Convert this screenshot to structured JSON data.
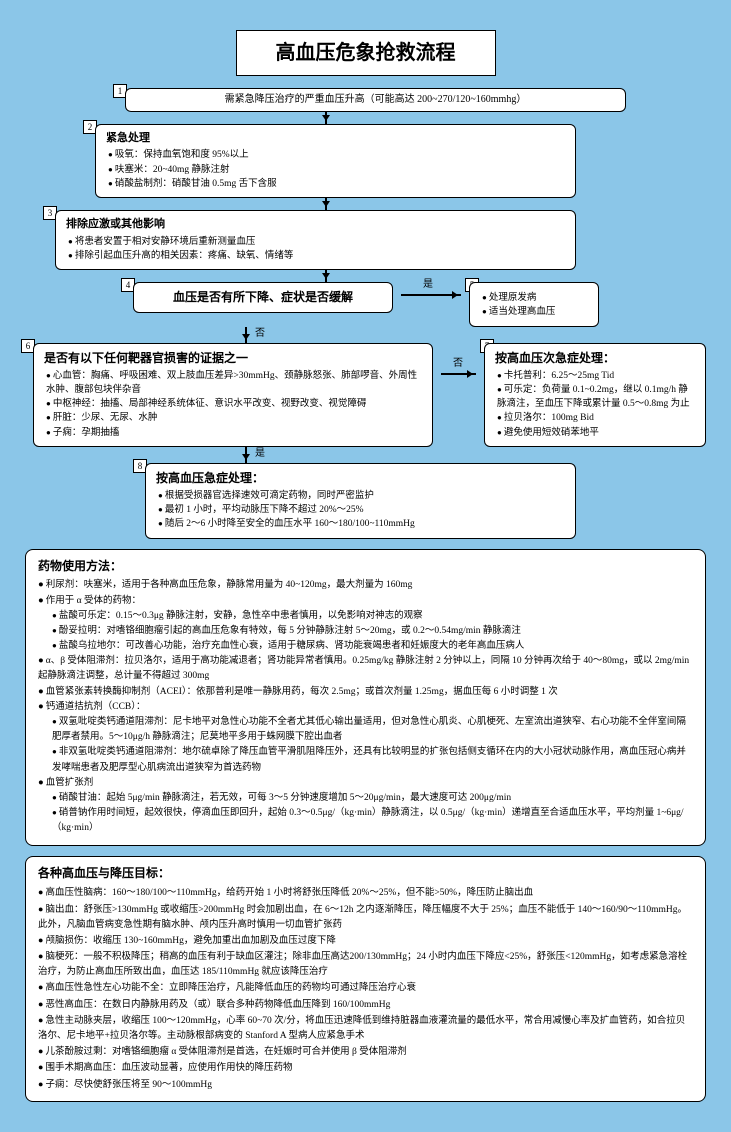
{
  "colors": {
    "bg": "#8bc6e8",
    "box": "#ffffff",
    "border": "#000000"
  },
  "title": "高血压危象抢救流程",
  "n1": {
    "num": "1",
    "text": "需紧急降压治疗的严重血压升高（可能高达 200~270/120~160mmhg）"
  },
  "n2": {
    "num": "2",
    "title": "紧急处理",
    "items": [
      "吸氧：保持血氧饱和度 95%以上",
      "呋塞米：20~40mg 静脉注射",
      "硝酸盐制剂：硝酸甘油 0.5mg 舌下含服"
    ]
  },
  "n3": {
    "num": "3",
    "title": "排除应激或其他影响",
    "items": [
      "将患者安置于相对安静环境后重新测量血压",
      "排除引起血压升高的相关因素：疼痛、缺氧、情绪等"
    ]
  },
  "n4": {
    "num": "4",
    "text": "血压是否有所下降、症状是否缓解"
  },
  "n5": {
    "num": "5",
    "items": [
      "处理原发病",
      "适当处理高血压"
    ]
  },
  "n6": {
    "num": "6",
    "title": "是否有以下任何靶器官损害的证据之一",
    "items": [
      "心血管：胸痛、呼吸困难、双上肢血压差异>30mmHg、颈静脉怒张、肺部啰音、外周性水肿、腹部包块伴杂音",
      "中枢神经：抽搐、局部神经系统体征、意识水平改变、视野改变、视觉障碍",
      "肝脏：少尿、无尿、水肿",
      "子痫：孕期抽搐"
    ]
  },
  "n7": {
    "num": "7",
    "title": "按高血压次急症处理：",
    "items": [
      "卡托普利：6.25～25mg Tid",
      "可乐定：负荷量 0.1~0.2mg，继以 0.1mg/h 静脉滴注，至血压下降或累计量 0.5～0.8mg 为止",
      "拉贝洛尔：100mg Bid",
      "避免使用短效硝苯地平"
    ]
  },
  "n8": {
    "num": "8",
    "title": "按高血压急症处理：",
    "items": [
      "根据受损器官选择速效可滴定药物，同时严密监护",
      "最初 1 小时，平均动脉压下降不超过 20%～25%",
      "随后 2～6 小时降至安全的血压水平 160～180/100~110mmHg"
    ]
  },
  "labels": {
    "yes": "是",
    "no": "否"
  },
  "drugs": {
    "title": "药物使用方法：",
    "top": "利尿剂：呋塞米，适用于各种高血压危象，静脉常用量为 40~120mg，最大剂量为 160mg",
    "alpha_h": "作用于 α 受体的药物：",
    "alpha": [
      "盐酸可乐定：0.15～0.3μg 静脉注射，安静，急性卒中患者慎用，以免影响对神志的观察",
      "酚妥拉明：对嗜铬细胞瘤引起的高血压危象有特效，每 5 分钟静脉注射 5～20mg，或 0.2～0.54mg/min 静脉滴注",
      "盐酸乌拉地尔：可改善心功能，治疗充血性心衰，适用于糖尿病、肾功能衰竭患者和妊娠度大的老年高血压病人"
    ],
    "ab": "α、β 受体阻滞剂：拉贝洛尔，适用于高功能减退者；肾功能异常者慎用。0.25mg/kg 静脉注射 2 分钟以上，同隔 10 分钟再次给于 40～80mg，或以 2mg/min 起静脉滴注调整，总计量不得超过 300mg",
    "acei": "血管紧张素转换酶抑制剂（ACEI）：依那普利是唯一静脉用药，每次 2.5mg；或首次剂量 1.25mg，据血压每 6 小时调整 1 次",
    "ccb_h": "钙通道拮抗剂（CCB）：",
    "ccb": [
      "双氢吡啶类钙通道阻滞剂：尼卡地平对急性心功能不全者尤其低心输出量适用，但对急性心肌炎、心肌梗死、左室流出道狭窄、右心功能不全伴室间隔肥厚者禁用。5～10μg/h 静脉滴注；尼莫地平多用于蛛网膜下腔出血者",
      "非双氢吡啶类钙通道阻滞剂：地尔硫卓除了降压血管平滑肌阻降压外，还具有比较明显的扩张包括侧支循环在内的大小冠状动脉作用，高血压冠心病并发哮喘患者及肥厚型心肌病流出道狭窄为首选药物"
    ],
    "vaso_h": "血管扩张剂",
    "vaso": [
      "硝酸甘油：起始 5μg/min 静脉滴注，若无效，可每 3～5 分钟速度增加 5～20μg/min，最大速度可达 200μg/min",
      "硝普钠作用时间短，起效很快，停滴血压即回升，起始 0.3～0.5μg/（kg·min）静脉滴注，以 0.5μg/（kg·min）递增直至合适血压水平，平均剂量 1~6μg/（kg·min）"
    ]
  },
  "targets": {
    "title": "各种高血压与降压目标：",
    "items": [
      "高血压性脑病：160～180/100～110mmHg，给药开始 1 小时将舒张压降低 20%～25%，但不能>50%，降压防止脑出血",
      "脑出血：舒张压>130mmHg 或收缩压>200mmHg 时会加剧出血，在 6～12h 之内逐渐降压，降压幅度不大于 25%；血压不能低于 140～160/90～110mmHg。此外，凡脑血管病变急性期有脑水肿、颅内压升高时慎用一切血管扩张药",
      "颅脑损伤：收缩压 130~160mmHg，避免加重出血加剧及血压过度下降",
      "脑梗死：一般不积极降压；稍高的血压有利于缺血区灌注；除非血压高达200/130mmHg；24 小时内血压下降应<25%，舒张压<120mmHg，如考虑紧急溶栓治疗，为防止高血压所致出血，血压达 185/110mmHg 就应该降压治疗",
      "高血压性急性左心功能不全：立即降压治疗，凡能降低血压的药物均可通过降压治疗心衰",
      "恶性高血压：在数日内静脉用药及（或）联合多种药物降低血压降到 160/100mmHg",
      "急性主动脉夹层，收缩压 100～120mmHg，心率 60~70 次/分，将血压迅速降低到维持脏器血液灌流量的最低水平，常合用减慢心率及扩血管药，如合拉贝洛尔、尼卡地平+拉贝洛尔等。主动脉根部病变的 Stanford A 型病人应紧急手术",
      "儿茶酚胺过剩：对嗜铬细胞瘤 α 受体阻滞剂是首选，在妊娠时可合并使用 β 受体阻滞剂",
      "围手术期高血压：血压波动显著，应使用作用快的降压药物",
      "子痫：尽快使舒张压将至 90～100mmHg"
    ]
  }
}
